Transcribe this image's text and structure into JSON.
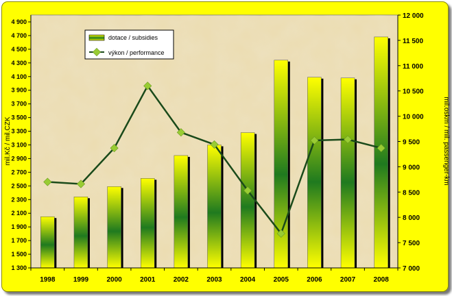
{
  "chart_data": {
    "type": "bar",
    "categories": [
      "1998",
      "1999",
      "2000",
      "2001",
      "2002",
      "2003",
      "2004",
      "2005",
      "2006",
      "2007",
      "2008"
    ],
    "series": [
      {
        "name": "dotace / subsidies",
        "type": "bar",
        "axis": "left",
        "values": [
          2050,
          2340,
          2490,
          2610,
          2945,
          3100,
          3280,
          4340,
          4090,
          4080,
          4680
        ]
      },
      {
        "name": "výkon / performance",
        "type": "line",
        "axis": "right",
        "values": [
          8700,
          8660,
          9370,
          10600,
          9680,
          9440,
          8530,
          7680,
          9520,
          9540,
          9370
        ]
      }
    ],
    "ylabel_left": "mil.Kč / mil.CZK",
    "ylabel_right": "mil.oskm / mil. passenger-km",
    "ylim_left": [
      1300,
      5000
    ],
    "yticks_left": [
      1300,
      1500,
      1700,
      1900,
      2100,
      2300,
      2500,
      2700,
      2900,
      3100,
      3300,
      3500,
      3700,
      3900,
      4100,
      4300,
      4500,
      4700,
      4900
    ],
    "yticklabels_left": [
      "1 300",
      "1 500",
      "1 700",
      "1 900",
      "2 100",
      "2 300",
      "2 500",
      "2 700",
      "2 900",
      "3 100",
      "3 300",
      "3 500",
      "3 700",
      "3 900",
      "4 100",
      "4 300",
      "4 500",
      "4 700",
      "4 900"
    ],
    "ylim_right": [
      7000,
      12000
    ],
    "yticks_right": [
      7000,
      7500,
      8000,
      8500,
      9000,
      9500,
      10000,
      10500,
      11000,
      11500,
      12000
    ],
    "yticklabels_right": [
      "7 000",
      "7 500",
      "8 000",
      "8 500",
      "9 000",
      "9 500",
      "10 000",
      "10 500",
      "11 000",
      "11 500",
      "12 000"
    ],
    "legend_position": "top-left",
    "grid": false,
    "colors": {
      "bar_light": "#ffff00",
      "bar_dark": "#1f7a1f",
      "line": "#1a4a1a",
      "marker": "#99cc33",
      "frame": "#ffff00",
      "plot_bg": "#e8d7a8"
    }
  }
}
